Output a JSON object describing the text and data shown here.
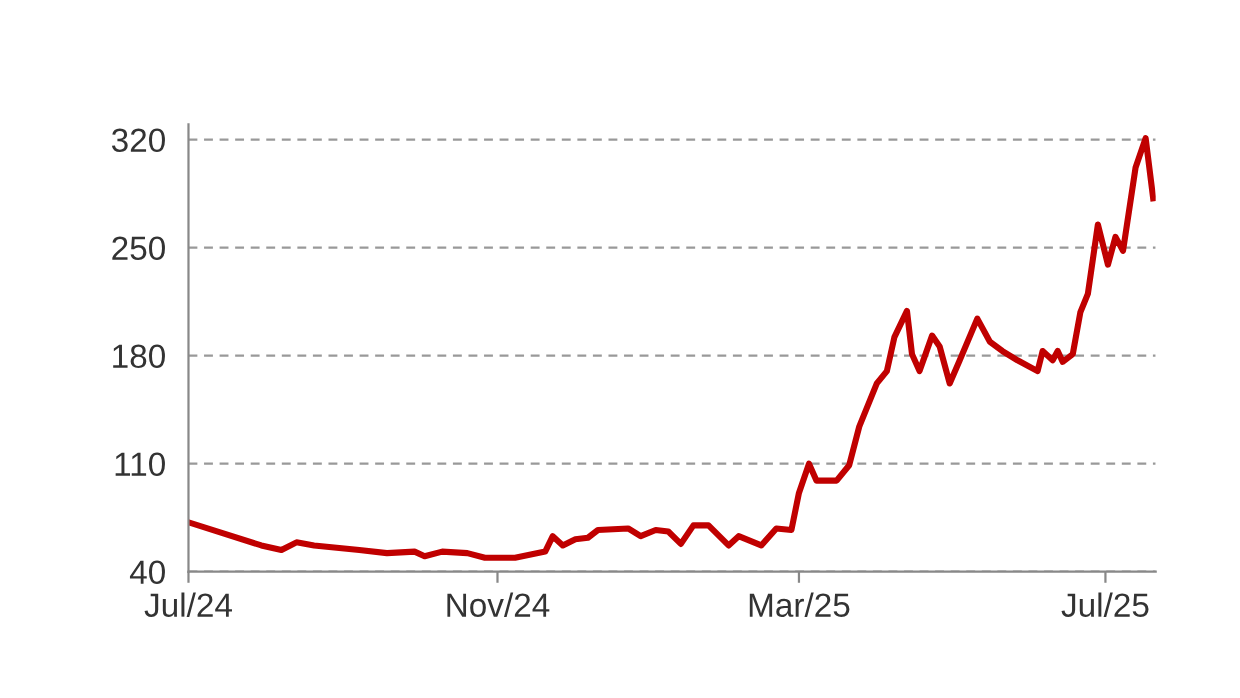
{
  "chart_data": {
    "type": "line",
    "x": [
      "2024-07-01",
      "2024-07-30",
      "2024-08-07",
      "2024-08-13",
      "2024-08-20",
      "2024-09-07",
      "2024-09-18",
      "2024-09-29",
      "2024-10-03",
      "2024-10-10",
      "2024-10-20",
      "2024-10-27",
      "2024-11-08",
      "2024-11-20",
      "2024-11-23",
      "2024-11-27",
      "2024-12-02",
      "2024-12-07",
      "2024-12-11",
      "2024-12-23",
      "2024-12-28",
      "2025-01-03",
      "2025-01-08",
      "2025-01-13",
      "2025-01-18",
      "2025-01-24",
      "2025-02-01",
      "2025-02-05",
      "2025-02-14",
      "2025-02-20",
      "2025-02-26",
      "2025-03-01",
      "2025-03-05",
      "2025-03-08",
      "2025-03-16",
      "2025-03-21",
      "2025-03-25",
      "2025-04-01",
      "2025-04-05",
      "2025-04-08",
      "2025-04-13",
      "2025-04-15",
      "2025-04-18",
      "2025-04-23",
      "2025-04-26",
      "2025-04-30",
      "2025-05-04",
      "2025-05-11",
      "2025-05-16",
      "2025-05-21",
      "2025-05-27",
      "2025-06-04",
      "2025-06-06",
      "2025-06-10",
      "2025-06-12",
      "2025-06-14",
      "2025-06-18",
      "2025-06-21",
      "2025-06-24",
      "2025-06-28",
      "2025-07-02",
      "2025-07-05",
      "2025-07-08",
      "2025-07-13",
      "2025-07-17",
      "2025-07-20"
    ],
    "series": [
      {
        "color": "#c00000",
        "values": [
          72,
          57,
          54,
          59,
          57,
          54,
          52,
          53,
          50,
          53,
          52,
          49,
          49,
          53,
          63,
          57,
          61,
          62,
          67,
          68,
          63,
          67,
          66,
          58,
          70,
          70,
          57,
          63,
          57,
          68,
          67,
          91,
          110,
          99,
          99,
          109,
          134,
          162,
          170,
          192,
          209,
          181,
          170,
          193,
          186,
          162,
          177,
          204,
          189,
          183,
          177,
          170,
          183,
          177,
          183,
          176,
          181,
          208,
          220,
          265,
          239,
          257,
          248,
          302,
          321,
          282
        ]
      }
    ],
    "xlim": [
      "2024-07-01",
      "2025-07-21"
    ],
    "xticks": [
      {
        "value": "2024-07-01",
        "label": "Jul/24"
      },
      {
        "value": "2024-11-01",
        "label": "Nov/24"
      },
      {
        "value": "2025-03-01",
        "label": "Mar/25"
      },
      {
        "value": "2025-07-01",
        "label": "Jul/25"
      }
    ],
    "ylim": [
      40,
      330
    ],
    "yticks": [
      40,
      110,
      180,
      250,
      320
    ],
    "grid": "y",
    "line_style": "solid",
    "marker": "none"
  }
}
